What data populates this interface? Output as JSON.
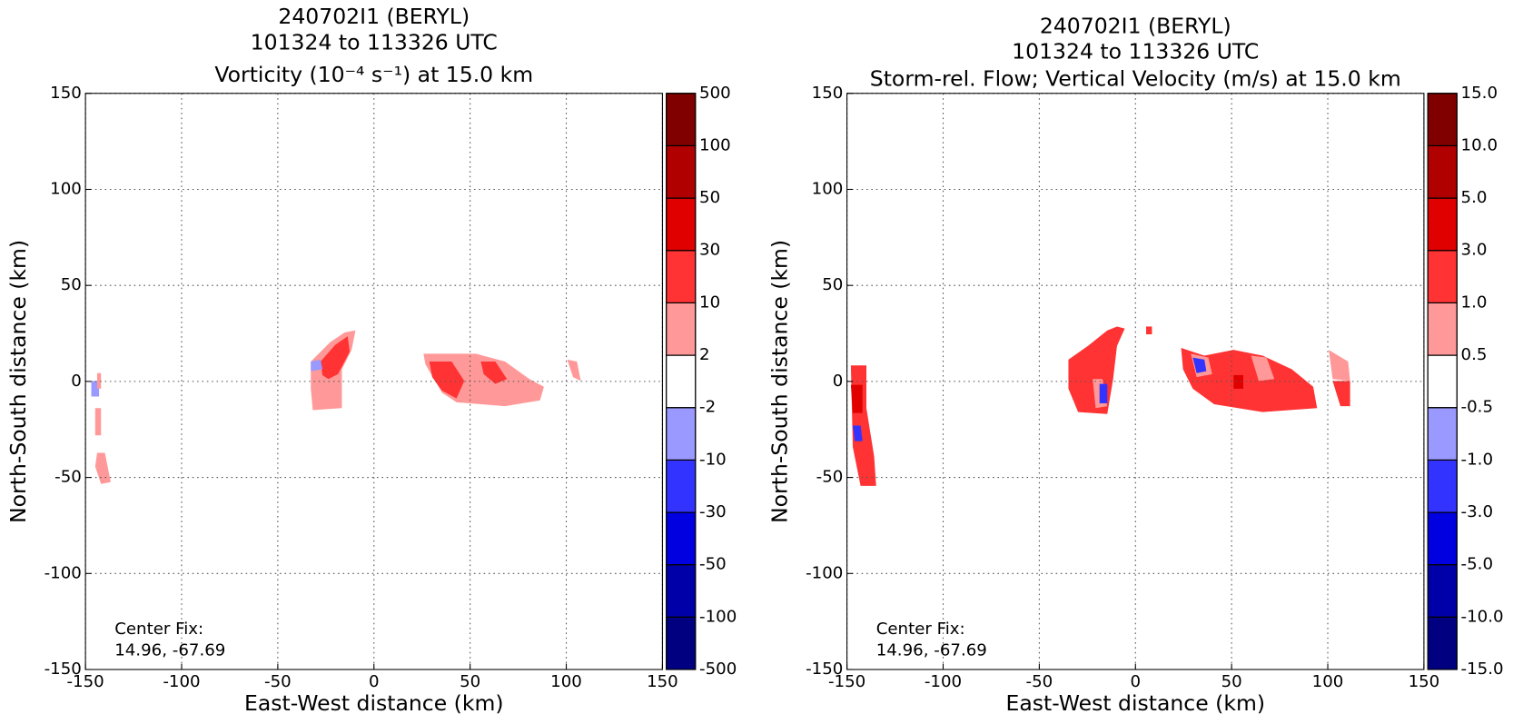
{
  "chart_data": [
    {
      "type": "contour",
      "title": [
        "240702I1 (BERYL)",
        "101324 to 113326 UTC",
        "Vorticity (10⁻⁴ s⁻¹) at 15.0 km"
      ],
      "xlabel": "East-West distance (km)",
      "ylabel": "North-South distance (km)",
      "xlim": [
        -150,
        150
      ],
      "ylim": [
        -150,
        150
      ],
      "xticks": [
        -150,
        -100,
        -50,
        0,
        50,
        100,
        150
      ],
      "yticks": [
        -150,
        -100,
        -50,
        0,
        50,
        100,
        150
      ],
      "grid": true,
      "annotation": [
        "Center Fix:",
        "14.96, -67.69"
      ],
      "colorbar": {
        "levels": [
          -500,
          -100,
          -50,
          -30,
          -10,
          -2,
          2,
          10,
          30,
          50,
          100,
          500
        ],
        "colors": [
          "#000080",
          "#0000a8",
          "#0000e0",
          "#3333ff",
          "#9999ff",
          "#ffffff",
          "#ff9999",
          "#ff3333",
          "#e00000",
          "#b00000",
          "#800000"
        ]
      }
    },
    {
      "type": "contour",
      "title": [
        "240702I1 (BERYL)",
        "101324 to 113326 UTC",
        "Storm-rel. Flow; Vertical Velocity (m/s) at 15.0 km"
      ],
      "xlabel": "East-West distance (km)",
      "ylabel": "North-South distance (km)",
      "xlim": [
        -150,
        150
      ],
      "ylim": [
        -150,
        150
      ],
      "xticks": [
        -150,
        -100,
        -50,
        0,
        50,
        100,
        150
      ],
      "yticks": [
        -150,
        -100,
        -50,
        0,
        50,
        100,
        150
      ],
      "grid": true,
      "annotation": [
        "Center Fix:",
        "14.96, -67.69"
      ],
      "colorbar": {
        "levels": [
          {
            "value": -15,
            "label": "-15.0"
          },
          {
            "value": -10,
            "label": "-10.0"
          },
          {
            "value": -5,
            "label": "-5.0"
          },
          {
            "value": -3,
            "label": "-3.0"
          },
          {
            "value": -1,
            "label": "-1.0"
          },
          {
            "value": -0.5,
            "label": "-0.5"
          },
          {
            "value": 0.5,
            "label": "0.5"
          },
          {
            "value": 1,
            "label": "1.0"
          },
          {
            "value": 3,
            "label": "3.0"
          },
          {
            "value": 5,
            "label": "5.0"
          },
          {
            "value": 10,
            "label": "10.0"
          },
          {
            "value": 15,
            "label": "15.0"
          }
        ],
        "colors": [
          "#000080",
          "#0000a8",
          "#0000e0",
          "#3333ff",
          "#9999ff",
          "#ffffff",
          "#ff9999",
          "#ff3333",
          "#e00000",
          "#b00000",
          "#800000"
        ]
      }
    }
  ]
}
